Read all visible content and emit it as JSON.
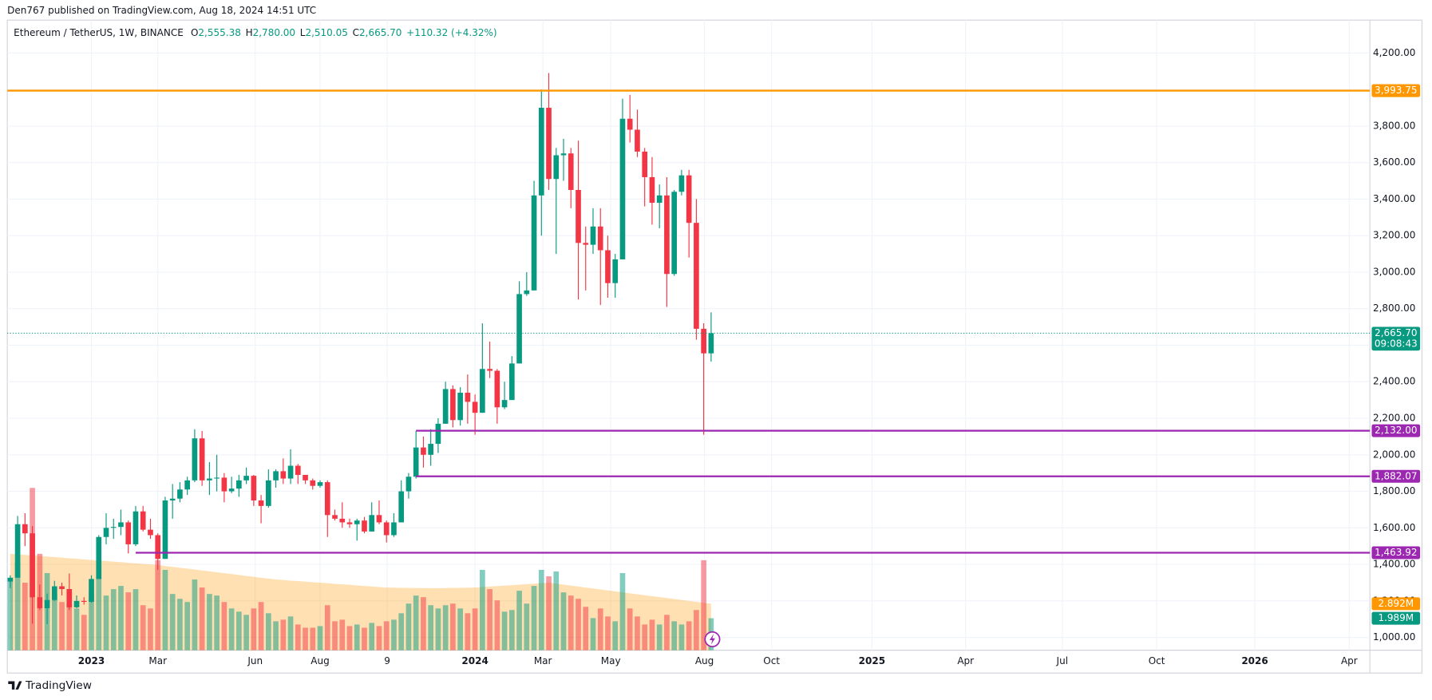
{
  "chart_data": {
    "type": "candlestick",
    "title": "Den767 published on TradingView.com, Aug 18, 2024 14:51 UTC",
    "legend": {
      "symbol": "Ethereum / TetherUS, 1W, BINANCE",
      "fields": [
        {
          "key": "O",
          "value": "2,555.38"
        },
        {
          "key": "H",
          "value": "2,780.00"
        },
        {
          "key": "L",
          "value": "2,510.05"
        },
        {
          "key": "C",
          "value": "2,665.70"
        }
      ],
      "change": "+110.32 (+4.32%)"
    },
    "footer": "TradingView",
    "up_color": "#089981",
    "down_color": "#f23645",
    "xlim": [
      -0.4,
      184.3
    ],
    "xticks": [
      {
        "value": 11,
        "label": "2023"
      },
      {
        "value": 20,
        "label": "Mar"
      },
      {
        "value": 33.2,
        "label": "Jun"
      },
      {
        "value": 42,
        "label": "Aug"
      },
      {
        "value": 51.1,
        "label": "9"
      },
      {
        "value": 63,
        "label": "2024"
      },
      {
        "value": 72.2,
        "label": "Mar"
      },
      {
        "value": 81.4,
        "label": "May"
      },
      {
        "value": 94.1,
        "label": "Aug"
      },
      {
        "value": 103.2,
        "label": "Oct"
      },
      {
        "value": 116.8,
        "label": "2025"
      },
      {
        "value": 129.5,
        "label": "Apr"
      },
      {
        "value": 142.6,
        "label": "Jul"
      },
      {
        "value": 155.4,
        "label": "Oct"
      },
      {
        "value": 168.7,
        "label": "2026"
      },
      {
        "value": 181.5,
        "label": "Apr"
      }
    ],
    "ylim": [
      930,
      4450
    ],
    "yticks": [
      {
        "value": 1000,
        "label": "1,000.00"
      },
      {
        "value": 1200,
        "label": "1,200.00"
      },
      {
        "value": 1400,
        "label": "1,400.00"
      },
      {
        "value": 1600,
        "label": "1,600.00"
      },
      {
        "value": 1800,
        "label": "1,800.00"
      },
      {
        "value": 2000,
        "label": "2,000.00"
      },
      {
        "value": 2200,
        "label": "2,200.00"
      },
      {
        "value": 2400,
        "label": "2,400.00"
      },
      {
        "value": 2600,
        "label": "2,600.00"
      },
      {
        "value": 2800,
        "label": "2,800.00"
      },
      {
        "value": 3000,
        "label": "3,000.00"
      },
      {
        "value": 3200,
        "label": "3,200.00"
      },
      {
        "value": 3400,
        "label": "3,400.00"
      },
      {
        "value": 3600,
        "label": "3,600.00"
      },
      {
        "value": 3800,
        "label": "3,800.00"
      },
      {
        "value": 4000,
        "label": "4,000.00"
      },
      {
        "value": 4200,
        "label": "4,200.00"
      }
    ],
    "grid": true,
    "candles": [
      [
        1306,
        1340,
        1270,
        1327
      ],
      [
        1327,
        1665,
        1327,
        1620
      ],
      [
        1620,
        1680,
        1500,
        1570
      ],
      [
        1570,
        1610,
        1075,
        1220
      ],
      [
        1220,
        1290,
        1150,
        1160
      ],
      [
        1160,
        1240,
        1073,
        1205
      ],
      [
        1205,
        1310,
        1200,
        1280
      ],
      [
        1280,
        1300,
        1230,
        1265
      ],
      [
        1265,
        1350,
        1150,
        1165
      ],
      [
        1165,
        1230,
        1160,
        1200
      ],
      [
        1200,
        1220,
        1180,
        1195
      ],
      [
        1195,
        1340,
        1190,
        1320
      ],
      [
        1320,
        1560,
        1320,
        1550
      ],
      [
        1550,
        1680,
        1510,
        1600
      ],
      [
        1600,
        1650,
        1540,
        1605
      ],
      [
        1605,
        1700,
        1560,
        1630
      ],
      [
        1630,
        1640,
        1460,
        1510
      ],
      [
        1510,
        1720,
        1500,
        1690
      ],
      [
        1690,
        1720,
        1580,
        1590
      ],
      [
        1590,
        1650,
        1540,
        1560
      ],
      [
        1560,
        1570,
        1370,
        1430
      ],
      [
        1430,
        1770,
        1430,
        1750
      ],
      [
        1750,
        1840,
        1650,
        1760
      ],
      [
        1760,
        1850,
        1740,
        1810
      ],
      [
        1810,
        1880,
        1780,
        1860
      ],
      [
        1860,
        2140,
        1850,
        2090
      ],
      [
        2090,
        2130,
        1830,
        1860
      ],
      [
        1860,
        1960,
        1780,
        1870
      ],
      [
        1870,
        2000,
        1800,
        1875
      ],
      [
        1875,
        1900,
        1740,
        1800
      ],
      [
        1800,
        1880,
        1790,
        1815
      ],
      [
        1815,
        1890,
        1770,
        1860
      ],
      [
        1860,
        1930,
        1840,
        1885
      ],
      [
        1885,
        1890,
        1720,
        1750
      ],
      [
        1750,
        1780,
        1625,
        1720
      ],
      [
        1720,
        1920,
        1710,
        1860
      ],
      [
        1860,
        1920,
        1820,
        1910
      ],
      [
        1910,
        1980,
        1840,
        1870
      ],
      [
        1870,
        2030,
        1840,
        1940
      ],
      [
        1940,
        1950,
        1840,
        1890
      ],
      [
        1890,
        1890,
        1840,
        1860
      ],
      [
        1860,
        1870,
        1810,
        1830
      ],
      [
        1830,
        1860,
        1820,
        1850
      ],
      [
        1850,
        1860,
        1550,
        1670
      ],
      [
        1670,
        1700,
        1640,
        1650
      ],
      [
        1650,
        1740,
        1600,
        1630
      ],
      [
        1630,
        1650,
        1600,
        1620
      ],
      [
        1620,
        1650,
        1530,
        1640
      ],
      [
        1640,
        1660,
        1570,
        1580
      ],
      [
        1580,
        1740,
        1580,
        1670
      ],
      [
        1670,
        1750,
        1620,
        1630
      ],
      [
        1630,
        1640,
        1520,
        1560
      ],
      [
        1560,
        1680,
        1550,
        1630
      ],
      [
        1630,
        1860,
        1630,
        1800
      ],
      [
        1800,
        1900,
        1760,
        1880
      ],
      [
        1880,
        2130,
        1870,
        2040
      ],
      [
        2040,
        2100,
        1930,
        2000
      ],
      [
        2000,
        2140,
        1940,
        2060
      ],
      [
        2060,
        2200,
        2010,
        2170
      ],
      [
        2170,
        2400,
        2170,
        2360
      ],
      [
        2360,
        2380,
        2150,
        2190
      ],
      [
        2190,
        2370,
        2160,
        2340
      ],
      [
        2340,
        2440,
        2170,
        2290
      ],
      [
        2290,
        2330,
        2110,
        2230
      ],
      [
        2230,
        2720,
        2230,
        2470
      ],
      [
        2470,
        2620,
        2420,
        2460
      ],
      [
        2460,
        2470,
        2170,
        2260
      ],
      [
        2260,
        2400,
        2250,
        2300
      ],
      [
        2300,
        2540,
        2300,
        2500
      ],
      [
        2500,
        2950,
        2500,
        2880
      ],
      [
        2880,
        3000,
        2870,
        2900
      ],
      [
        2900,
        3500,
        2900,
        3420
      ],
      [
        3420,
        4000,
        3200,
        3900
      ],
      [
        3900,
        4090,
        3450,
        3510
      ],
      [
        3510,
        3680,
        3100,
        3640
      ],
      [
        3640,
        3730,
        3500,
        3650
      ],
      [
        3650,
        3680,
        3350,
        3450
      ],
      [
        3450,
        3720,
        2850,
        3160
      ],
      [
        3160,
        3250,
        2900,
        3150
      ],
      [
        3150,
        3350,
        3100,
        3250
      ],
      [
        3250,
        3350,
        2820,
        3120
      ],
      [
        3120,
        3200,
        2860,
        2940
      ],
      [
        2940,
        3100,
        2860,
        3070
      ],
      [
        3070,
        3950,
        3070,
        3840
      ],
      [
        3840,
        3970,
        3710,
        3780
      ],
      [
        3780,
        3890,
        3630,
        3660
      ],
      [
        3660,
        3680,
        3360,
        3520
      ],
      [
        3520,
        3630,
        3260,
        3380
      ],
      [
        3380,
        3480,
        3240,
        3420
      ],
      [
        3420,
        3520,
        2810,
        2990
      ],
      [
        2990,
        3450,
        2980,
        3440
      ],
      [
        3440,
        3560,
        3420,
        3530
      ],
      [
        3530,
        3560,
        3080,
        3270
      ],
      [
        3270,
        3400,
        2630,
        2690
      ],
      [
        2690,
        2720,
        2110,
        2555.38
      ],
      [
        2555.38,
        2780,
        2510.05,
        2665.7
      ]
    ],
    "hlines": [
      {
        "value": 3993.75,
        "label": "3,993.75",
        "color": "#ff9800"
      },
      {
        "value": 2132.0,
        "label": "2,132.00",
        "color": "#9c27b0",
        "x_from": 55
      },
      {
        "value": 1882.07,
        "label": "1,882.07",
        "color": "#9c27b0",
        "x_from": 55
      },
      {
        "value": 1463.92,
        "label": "1,463.92",
        "color": "#9c27b0",
        "x_from": 17
      }
    ],
    "last_price": {
      "value": 2665.7,
      "label": "2,665.70",
      "countdown": "09:08:43",
      "color": "#089981"
    },
    "volume": {
      "ylim": [
        0,
        40
      ],
      "values": [
        4.5,
        5.5,
        4.2,
        10.1,
        6.0,
        4.8,
        3.5,
        3.0,
        2.9,
        2.6,
        2.2,
        3.6,
        4.6,
        3.4,
        3.8,
        4.0,
        3.6,
        3.8,
        2.8,
        2.6,
        5.6,
        5.0,
        3.5,
        3.2,
        3.0,
        4.4,
        3.9,
        3.5,
        3.4,
        3.0,
        2.6,
        2.4,
        2.2,
        2.6,
        3.0,
        2.3,
        1.8,
        1.9,
        2.1,
        1.6,
        1.4,
        1.4,
        1.5,
        2.8,
        1.8,
        1.9,
        1.5,
        1.6,
        1.4,
        1.7,
        1.5,
        1.8,
        1.9,
        2.3,
        2.9,
        3.4,
        3.3,
        2.8,
        2.6,
        2.8,
        2.9,
        2.6,
        2.3,
        2.6,
        5.0,
        3.8,
        3.1,
        2.4,
        2.5,
        3.7,
        2.9,
        4.0,
        5.0,
        4.6,
        4.9,
        3.6,
        3.4,
        3.2,
        2.7,
        2.0,
        2.6,
        2.1,
        1.8,
        4.8,
        2.6,
        2.1,
        1.6,
        1.9,
        1.6,
        2.2,
        1.8,
        1.6,
        1.8,
        2.5,
        5.6,
        1.989
      ],
      "ma": [
        6.0,
        5.97,
        5.93,
        5.9,
        5.86,
        5.83,
        5.79,
        5.76,
        5.72,
        5.69,
        5.65,
        5.62,
        5.58,
        5.55,
        5.51,
        5.48,
        5.44,
        5.41,
        5.37,
        5.34,
        5.3,
        5.24,
        5.19,
        5.13,
        5.08,
        5.02,
        4.96,
        4.91,
        4.85,
        4.79,
        4.74,
        4.68,
        4.62,
        4.57,
        4.51,
        4.46,
        4.4,
        4.37,
        4.33,
        4.3,
        4.27,
        4.23,
        4.2,
        4.17,
        4.13,
        4.1,
        4.07,
        4.03,
        4.0,
        3.97,
        3.93,
        3.9,
        3.89,
        3.88,
        3.88,
        3.87,
        3.87,
        3.86,
        3.86,
        3.87,
        3.88,
        3.88,
        3.89,
        3.9,
        3.93,
        3.96,
        3.99,
        4.02,
        4.05,
        4.08,
        4.11,
        4.14,
        4.17,
        4.2,
        4.14,
        4.08,
        4.02,
        3.96,
        3.9,
        3.84,
        3.78,
        3.72,
        3.66,
        3.6,
        3.54,
        3.48,
        3.42,
        3.36,
        3.31,
        3.25,
        3.19,
        3.13,
        3.07,
        3.01,
        2.95,
        2.892
      ],
      "value_label": "1.989M",
      "ma_label": "2.892M",
      "up_color": "rgba(8,153,129,0.5)",
      "down_color": "rgba(242,54,69,0.5)",
      "ma_color": "rgba(255,152,0,0.3)",
      "ma_label_color": "#ff9800"
    }
  }
}
